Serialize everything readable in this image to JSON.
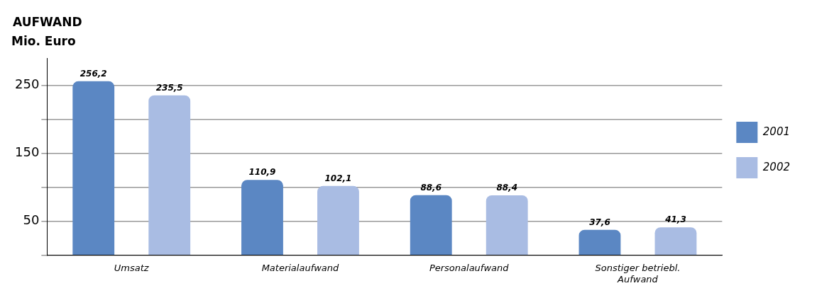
{
  "chart_data": {
    "type": "bar",
    "title": "AUFWAND",
    "ylabel": "Mio. Euro",
    "categories": [
      "Umsatz",
      "Materialaufwand",
      "Personalaufwand",
      "Sonstiger betriebl. Aufwand"
    ],
    "series": [
      {
        "name": "2001",
        "color": "#5b87c3",
        "values": [
          256.2,
          110.9,
          88.6,
          37.6
        ],
        "value_labels": [
          "256,2",
          "110,9",
          "88,6",
          "37,6"
        ]
      },
      {
        "name": "2002",
        "color": "#a9bce3",
        "values": [
          235.5,
          102.1,
          88.4,
          41.3
        ],
        "value_labels": [
          "235,5",
          "102,1",
          "88,4",
          "41,3"
        ]
      }
    ],
    "ylim": [
      0,
      290
    ],
    "yticks": [
      {
        "value": 0,
        "label": null
      },
      50,
      {
        "value": 100,
        "label": null
      },
      150,
      {
        "value": 200,
        "label": null
      },
      250
    ],
    "grid": "y",
    "legend": "right"
  }
}
